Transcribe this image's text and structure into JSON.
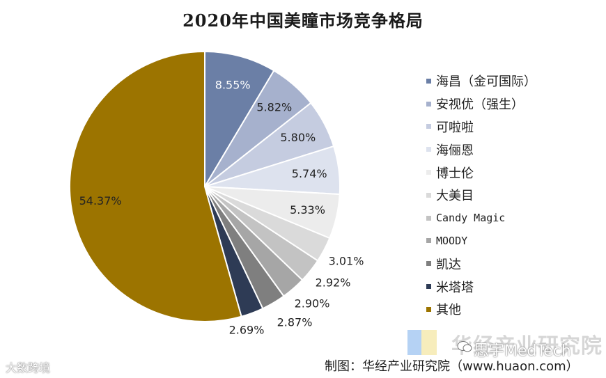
{
  "chart_data": {
    "type": "pie",
    "title": "2020年中国美瞳市场竞争格局",
    "start_angle_deg": 0,
    "direction": "clockwise",
    "slices": [
      {
        "name": "海昌（金可国际）",
        "value": 8.55,
        "label": "8.55%",
        "color": "#6b7fa6",
        "label_color": "#ffffff"
      },
      {
        "name": "安视优（强生）",
        "value": 5.82,
        "label": "5.82%",
        "color": "#a6b1cd",
        "label_color": "#222222"
      },
      {
        "name": "可啦啦",
        "value": 5.8,
        "label": "5.80%",
        "color": "#c5cce0",
        "label_color": "#222222"
      },
      {
        "name": "海俪恩",
        "value": 5.74,
        "label": "5.74%",
        "color": "#dde2ee",
        "label_color": "#222222"
      },
      {
        "name": "博士伦",
        "value": 5.33,
        "label": "5.33%",
        "color": "#ececec",
        "label_color": "#222222"
      },
      {
        "name": "大美目",
        "value": 3.01,
        "label": "3.01%",
        "color": "#dadada",
        "label_color": "#222222"
      },
      {
        "name": "Candy Magic",
        "value": 2.92,
        "label": "2.92%",
        "color": "#c3c3c3",
        "label_color": "#222222"
      },
      {
        "name": "MOODY",
        "value": 2.9,
        "label": "2.90%",
        "color": "#a6a6a6",
        "label_color": "#222222"
      },
      {
        "name": "凯达",
        "value": 2.87,
        "label": "2.87%",
        "color": "#7f7f7f",
        "label_color": "#222222"
      },
      {
        "name": "米塔塔",
        "value": 2.69,
        "label": "2.69%",
        "color": "#2e3b55",
        "label_color": "#222222"
      },
      {
        "name": "其他",
        "value": 54.37,
        "label": "54.37%",
        "color": "#9c7400",
        "label_color": "#222222"
      }
    ],
    "legend_position": "right"
  },
  "source": "制图：华经产业研究院（www.huaon.com）",
  "watermark": {
    "brand": "华经产业研究院",
    "wechat": "思宇MedTech",
    "corner": "大数跨境"
  }
}
